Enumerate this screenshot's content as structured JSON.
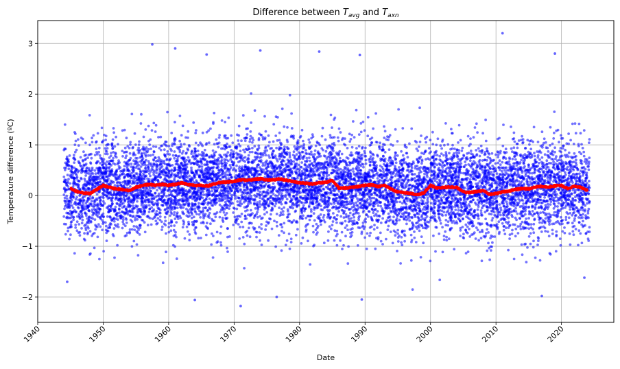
{
  "chart_data": {
    "type": "scatter",
    "title": {
      "prefix": "Difference between ",
      "var1": "T",
      "var1_sub": "avg",
      "middle": " and ",
      "var2": "T",
      "var2_sub": "axn"
    },
    "xlabel": "Date",
    "ylabel": "Temperature difference (ºC)",
    "xlim": [
      1940.0,
      2028.0
    ],
    "ylim": [
      -2.5,
      3.45
    ],
    "x_ticks": [
      1940,
      1950,
      1960,
      1970,
      1980,
      1990,
      2000,
      2010,
      2020
    ],
    "y_ticks": [
      -2,
      -1,
      0,
      1,
      2,
      3
    ],
    "grid": true,
    "scatter_color": "#0000ff",
    "trend_color": "#ff0000",
    "series": [
      {
        "kind": "daily-points",
        "x_range": [
          1944.0,
          2024.3
        ],
        "core_range": [
          -0.6,
          1.0
        ],
        "outliers": [
          {
            "x": 1957.5,
            "y": 2.98
          },
          {
            "x": 1961.0,
            "y": 2.9
          },
          {
            "x": 1965.8,
            "y": 2.78
          },
          {
            "x": 1974.0,
            "y": 2.86
          },
          {
            "x": 1983.0,
            "y": 2.84
          },
          {
            "x": 1989.2,
            "y": 2.77
          },
          {
            "x": 2011.0,
            "y": 3.2
          },
          {
            "x": 2019.0,
            "y": 2.8
          },
          {
            "x": 1964.0,
            "y": -2.06
          },
          {
            "x": 1971.0,
            "y": -2.18
          },
          {
            "x": 1976.5,
            "y": -2.0
          },
          {
            "x": 1989.5,
            "y": -2.05
          },
          {
            "x": 2017.0,
            "y": -1.98
          },
          {
            "x": 1944.5,
            "y": -1.7
          },
          {
            "x": 2023.5,
            "y": -1.62
          }
        ]
      },
      {
        "kind": "rolling-mean",
        "points": [
          [
            1945.0,
            0.14
          ],
          [
            1946.0,
            0.08
          ],
          [
            1947.0,
            0.05
          ],
          [
            1948.0,
            0.04
          ],
          [
            1949.0,
            0.12
          ],
          [
            1950.0,
            0.2
          ],
          [
            1951.0,
            0.16
          ],
          [
            1952.0,
            0.13
          ],
          [
            1953.0,
            0.12
          ],
          [
            1954.0,
            0.1
          ],
          [
            1955.0,
            0.16
          ],
          [
            1956.0,
            0.2
          ],
          [
            1957.0,
            0.22
          ],
          [
            1958.0,
            0.2
          ],
          [
            1959.0,
            0.22
          ],
          [
            1960.0,
            0.2
          ],
          [
            1961.0,
            0.22
          ],
          [
            1962.0,
            0.25
          ],
          [
            1963.0,
            0.22
          ],
          [
            1964.0,
            0.2
          ],
          [
            1965.0,
            0.2
          ],
          [
            1966.0,
            0.19
          ],
          [
            1967.0,
            0.23
          ],
          [
            1968.0,
            0.26
          ],
          [
            1969.0,
            0.27
          ],
          [
            1970.0,
            0.28
          ],
          [
            1971.0,
            0.31
          ],
          [
            1972.0,
            0.3
          ],
          [
            1973.0,
            0.32
          ],
          [
            1974.0,
            0.33
          ],
          [
            1975.0,
            0.31
          ],
          [
            1976.0,
            0.31
          ],
          [
            1977.0,
            0.33
          ],
          [
            1978.0,
            0.3
          ],
          [
            1979.0,
            0.28
          ],
          [
            1980.0,
            0.25
          ],
          [
            1981.0,
            0.24
          ],
          [
            1982.0,
            0.23
          ],
          [
            1983.0,
            0.25
          ],
          [
            1984.0,
            0.26
          ],
          [
            1985.0,
            0.3
          ],
          [
            1986.0,
            0.15
          ],
          [
            1987.0,
            0.15
          ],
          [
            1988.0,
            0.16
          ],
          [
            1989.0,
            0.18
          ],
          [
            1990.0,
            0.2
          ],
          [
            1991.0,
            0.21
          ],
          [
            1992.0,
            0.18
          ],
          [
            1993.0,
            0.2
          ],
          [
            1994.0,
            0.13
          ],
          [
            1995.0,
            0.07
          ],
          [
            1996.0,
            0.06
          ],
          [
            1997.0,
            0.04
          ],
          [
            1998.0,
            0.02
          ],
          [
            1999.0,
            0.05
          ],
          [
            2000.0,
            0.2
          ],
          [
            2001.0,
            0.15
          ],
          [
            2002.0,
            0.16
          ],
          [
            2003.0,
            0.17
          ],
          [
            2004.0,
            0.16
          ],
          [
            2005.0,
            0.07
          ],
          [
            2006.0,
            0.06
          ],
          [
            2007.0,
            0.08
          ],
          [
            2008.0,
            0.1
          ],
          [
            2009.0,
            0.02
          ],
          [
            2010.0,
            0.04
          ],
          [
            2011.0,
            0.07
          ],
          [
            2012.0,
            0.09
          ],
          [
            2013.0,
            0.12
          ],
          [
            2014.0,
            0.14
          ],
          [
            2015.0,
            0.13
          ],
          [
            2016.0,
            0.17
          ],
          [
            2017.0,
            0.18
          ],
          [
            2018.0,
            0.17
          ],
          [
            2019.0,
            0.19
          ],
          [
            2020.0,
            0.2
          ],
          [
            2021.0,
            0.14
          ],
          [
            2022.0,
            0.18
          ],
          [
            2023.0,
            0.16
          ],
          [
            2024.0,
            0.1
          ]
        ]
      }
    ]
  }
}
